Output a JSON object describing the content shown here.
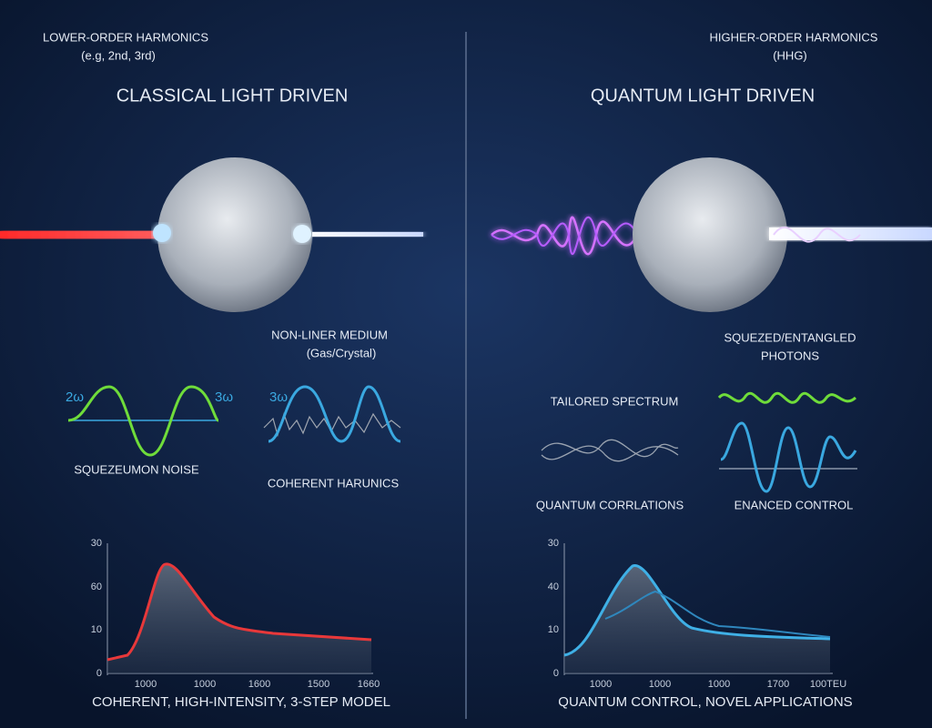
{
  "left": {
    "header": "LOWER-ORDER HARMONICS",
    "subheader": "(e.g, 2nd, 3rd)",
    "title": "CLASSICAL LIGHT DRIVEN",
    "medium_label": "NON-LINER MEDIUM",
    "medium_sub": "(Gas/Crystal)",
    "wave_labels": [
      "2ω",
      "3ω",
      "3ω"
    ],
    "captions": [
      "SQUEZEUMON NOISE",
      "COHERENT HARUNICS"
    ],
    "chart": {
      "yticks": [
        "30",
        "60",
        "10",
        "0"
      ],
      "xticks": [
        "1000",
        "1000",
        "1600",
        "1500",
        "1660"
      ]
    },
    "footer": "COHERENT, HIGH-INTENSITY, 3-STEP MODEL"
  },
  "right": {
    "header": "HIGHER-ORDER HARMONICS",
    "subheader": "(HHG)",
    "title": "QUANTUM LIGHT DRIVEN",
    "photons_label": "SQUEZED/ENTANGLED",
    "photons_sub": "PHOTONS",
    "captions": [
      "TAILORED SPECTRUM",
      "QUANTUM CORRLATIONS",
      "ENANCED CONTROL"
    ],
    "chart": {
      "yticks": [
        "30",
        "40",
        "10",
        "0"
      ],
      "xticks": [
        "1000",
        "1000",
        "1000",
        "1700",
        "100TEU"
      ]
    },
    "footer": "QUANTUM CONTROL, NOVEL APPLICATIONS"
  }
}
